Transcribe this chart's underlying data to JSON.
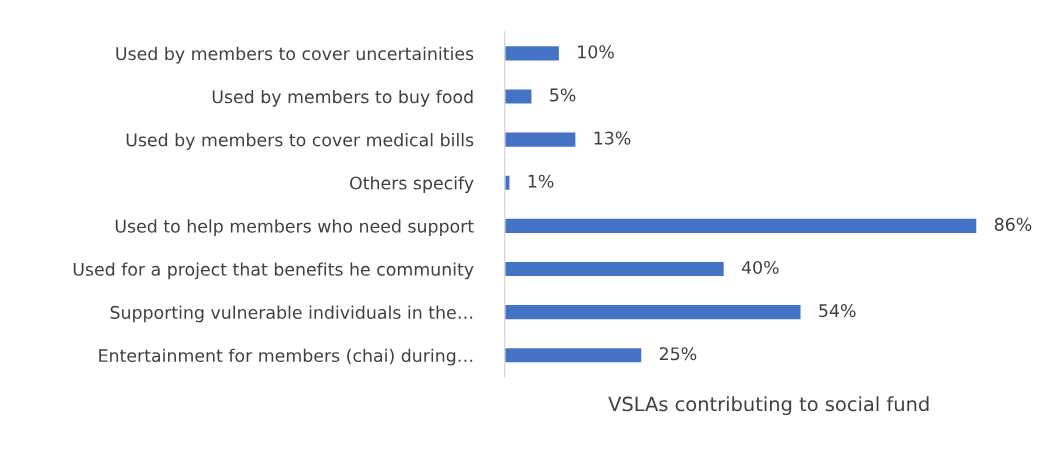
{
  "chart_data": {
    "type": "bar",
    "orientation": "horizontal",
    "categories": [
      "Used by members to cover uncertainities",
      "Used by members to buy food",
      "Used by members to cover medical bills",
      "Others specify",
      "Used to help members who need support",
      "Used for a project that benefits he community",
      "Supporting vulnerable individuals in the…",
      "Entertainment for members (chai) during…"
    ],
    "values": [
      10,
      5,
      13,
      1,
      86,
      40,
      54,
      25
    ],
    "value_labels": [
      "10%",
      "5%",
      "13%",
      "1%",
      "86%",
      "40%",
      "54%",
      "25%"
    ],
    "color": "#4472c4",
    "xlabel": "VSLAs contributing to social fund",
    "tick_labels": "y",
    "grid": false,
    "legend": false
  }
}
